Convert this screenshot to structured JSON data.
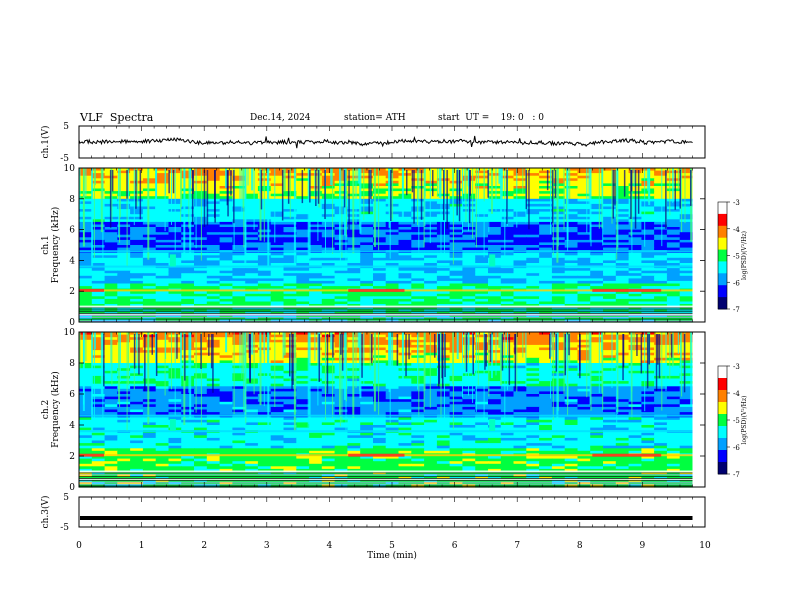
{
  "header": {
    "title": "VLF  Spectra",
    "date": "Dec.14, 2024",
    "station": "station= ATH",
    "start": "start  UT =    19: 0   : 0"
  },
  "chart_data": [
    {
      "type": "line",
      "name": "ch1-waveform",
      "ylabel": "ch.1(V)",
      "ylim": [
        -5,
        5
      ],
      "yticks": [
        "5",
        "-5"
      ],
      "xlim": [
        0,
        10
      ],
      "level": 0,
      "color": "#000000"
    },
    {
      "type": "heatmap",
      "name": "ch1-spectrogram",
      "ylabel": "ch.1\nFrequency  (kHz)",
      "ylabel_lines": [
        "ch.1",
        "Frequency  (kHz)"
      ],
      "ylim": [
        0,
        10
      ],
      "yticks": [
        "0",
        "2",
        "4",
        "6",
        "8",
        "10"
      ],
      "xlim": [
        0,
        10
      ],
      "colorbar": {
        "label": "log(PSD)(V²/Hz)",
        "range": [
          -7,
          -3
        ],
        "ticks": [
          "-3",
          "-4",
          "-5",
          "-6",
          "-7"
        ],
        "colors": [
          "#000070",
          "#0000ff",
          "#00a0ff",
          "#00ffff",
          "#00ff40",
          "#ffff00",
          "#ff8000",
          "#ff0000",
          "#ffffff"
        ]
      },
      "bright_lines_khz": [
        0.5,
        1.0,
        2.05,
        3.6,
        4.6
      ],
      "features": [
        {
          "t_min": 1.5,
          "f_khz": 4.0
        },
        {
          "t_min": 6.6,
          "f_khz": 4.0
        }
      ]
    },
    {
      "type": "heatmap",
      "name": "ch2-spectrogram",
      "ylabel": "ch.2\nFrequency  (kHz)",
      "ylabel_lines": [
        "ch.2",
        "Frequency  (kHz)"
      ],
      "ylim": [
        0,
        10
      ],
      "yticks": [
        "0",
        "2",
        "4",
        "6",
        "8",
        "10"
      ],
      "xlim": [
        0,
        10
      ],
      "colorbar": {
        "label": "log(PSD)(V²/Hz)",
        "range": [
          -7,
          -3
        ],
        "ticks": [
          "-3",
          "-4",
          "-5",
          "-6",
          "-7"
        ],
        "colors": [
          "#000070",
          "#0000ff",
          "#00a0ff",
          "#00ffff",
          "#00ff40",
          "#ffff00",
          "#ff8000",
          "#ff0000",
          "#ffffff"
        ]
      },
      "bright_lines_khz": [
        0.5,
        1.0,
        2.05,
        3.6,
        4.6
      ],
      "features": [
        {
          "t_min": 1.5,
          "f_khz": 4.0
        },
        {
          "t_min": 6.6,
          "f_khz": 4.0
        }
      ]
    },
    {
      "type": "line",
      "name": "ch3-waveform",
      "ylabel": "ch.3(V)",
      "ylim": [
        -5,
        5
      ],
      "yticks": [
        "5",
        "-5"
      ],
      "xlim": [
        0,
        10
      ],
      "level": -2,
      "color": "#000000"
    }
  ],
  "xaxis": {
    "label": "Time  (min)",
    "ticks": [
      "0",
      "1",
      "2",
      "3",
      "4",
      "5",
      "6",
      "7",
      "8",
      "9",
      "10"
    ],
    "data_end": 9.8
  }
}
